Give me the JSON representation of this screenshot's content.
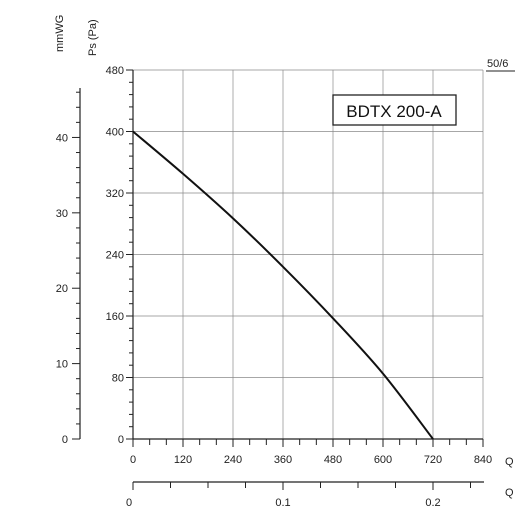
{
  "chart_data": {
    "type": "line",
    "model_label": "BDTX 200-A",
    "corner_label": "50/6",
    "x": [
      0,
      120,
      240,
      360,
      480,
      600,
      720
    ],
    "y": [
      400,
      345,
      287,
      224,
      157,
      85,
      0
    ],
    "xlim": [
      0,
      840
    ],
    "ylim": [
      0,
      480
    ],
    "x_ticks": [
      "0",
      "120",
      "240",
      "360",
      "480",
      "600",
      "720",
      "840"
    ],
    "y_ticks": [
      "0",
      "80",
      "160",
      "240",
      "320",
      "400",
      "480"
    ],
    "y_label": "Ps (Pa)",
    "x_label": "Q",
    "secondary_y_label": "mmWG",
    "secondary_y_ticks": [
      "0",
      "10",
      "20",
      "30",
      "40"
    ],
    "secondary_x_label": "Q",
    "secondary_x_ticks": [
      "0",
      "0.1",
      "0.2"
    ],
    "grid": true
  }
}
